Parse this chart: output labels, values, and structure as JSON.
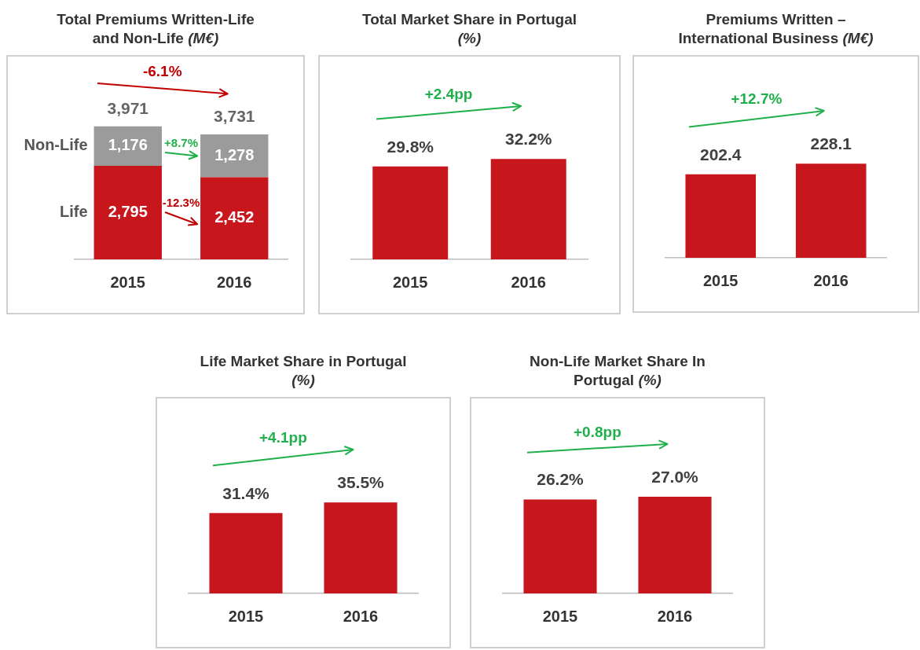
{
  "chart_data": [
    {
      "type": "bar",
      "title": "Total Premiums Written-Life and Non-Life (M€)",
      "categories": [
        "2015",
        "2016"
      ],
      "stacked": true,
      "series": [
        {
          "name": "Life",
          "color": "#c8161d",
          "values": [
            2795,
            2452
          ],
          "value_labels": [
            "2,795",
            "2,452"
          ]
        },
        {
          "name": "Non-Life",
          "color": "#9b9b9b",
          "values": [
            1176,
            1278
          ],
          "value_labels": [
            "1,176",
            "1,278"
          ]
        }
      ],
      "totals": [
        "3,971",
        "3,731"
      ],
      "annotations": [
        "-6.1%",
        "+8.7%",
        "-12.3%"
      ]
    },
    {
      "type": "bar",
      "title": "Total Market Share in Portugal (%)",
      "categories": [
        "2015",
        "2016"
      ],
      "color": "#c8161d",
      "values": [
        29.8,
        32.2
      ],
      "value_labels": [
        "29.8%",
        "32.2%"
      ],
      "annotations": [
        "+2.4pp"
      ]
    },
    {
      "type": "bar",
      "title": "Premiums Written – International Business (M€)",
      "categories": [
        "2015",
        "2016"
      ],
      "color": "#c8161d",
      "values": [
        202.4,
        228.1
      ],
      "value_labels": [
        "202.4",
        "228.1"
      ],
      "annotations": [
        "+12.7%"
      ]
    },
    {
      "type": "bar",
      "title": "Life Market Share in Portugal (%)",
      "categories": [
        "2015",
        "2016"
      ],
      "color": "#c8161d",
      "values": [
        31.4,
        35.5
      ],
      "value_labels": [
        "31.4%",
        "35.5%"
      ],
      "annotations": [
        "+4.1pp"
      ]
    },
    {
      "type": "bar",
      "title": "Non-Life Market Share In Portugal (%)",
      "categories": [
        "2015",
        "2016"
      ],
      "color": "#c8161d",
      "values": [
        26.2,
        27.0
      ],
      "value_labels": [
        "26.2%",
        "27.0%"
      ],
      "annotations": [
        "+0.8pp"
      ]
    }
  ]
}
